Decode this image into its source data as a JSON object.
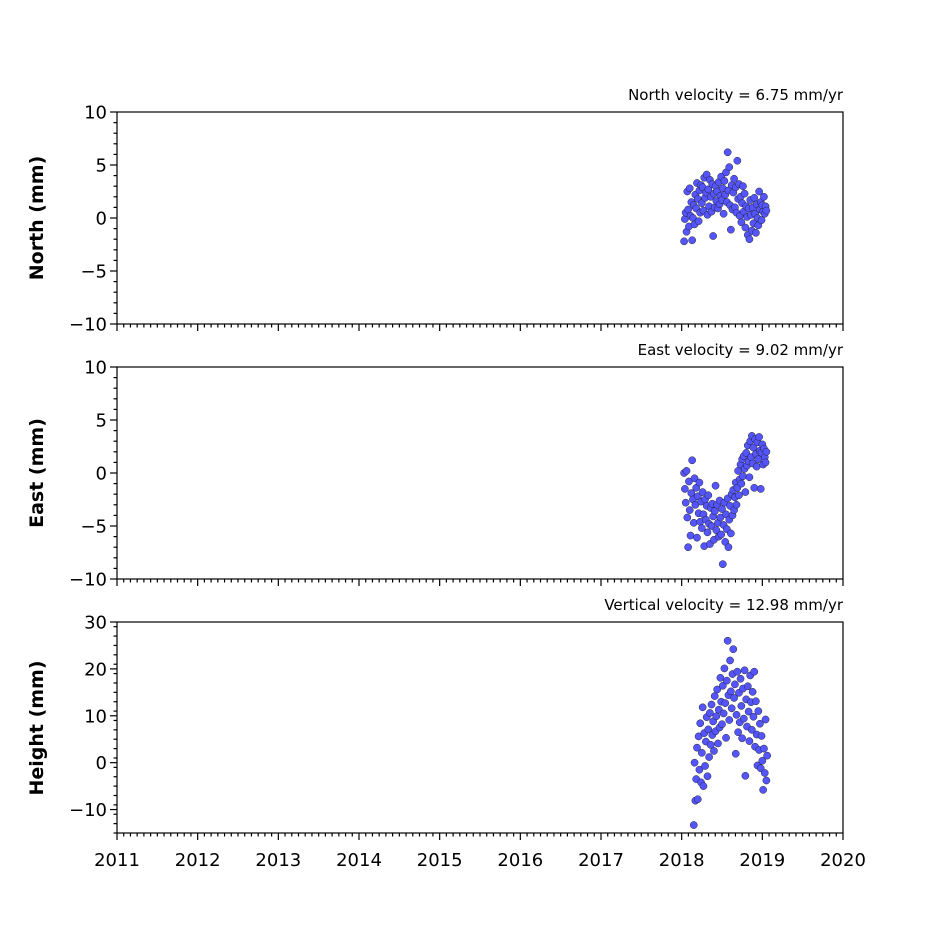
{
  "chart_data": [
    {
      "type": "scatter",
      "ylabel": "North (mm)",
      "annotation": "North velocity = 6.75 mm/yr",
      "xlim": [
        2011,
        2020
      ],
      "ylim": [
        -10,
        10
      ],
      "xticks": [
        2011,
        2012,
        2013,
        2014,
        2015,
        2016,
        2017,
        2018,
        2019,
        2020
      ],
      "yticks": [
        10,
        5,
        0,
        -5,
        -10
      ],
      "yticklabels": [
        "10",
        "5",
        "0",
        "−5",
        "−10"
      ],
      "color": "#5555ff",
      "points": [
        [
          2018.03,
          -2.2
        ],
        [
          2018.04,
          -0.1
        ],
        [
          2018.05,
          0.5
        ],
        [
          2018.06,
          -1.3
        ],
        [
          2018.07,
          2.5
        ],
        [
          2018.08,
          0.8
        ],
        [
          2018.09,
          -0.8
        ],
        [
          2018.1,
          2.8
        ],
        [
          2018.11,
          0.2
        ],
        [
          2018.12,
          1.5
        ],
        [
          2018.13,
          -2.1
        ],
        [
          2018.14,
          0.0
        ],
        [
          2018.15,
          1.2
        ],
        [
          2018.16,
          -0.6
        ],
        [
          2018.17,
          2.2
        ],
        [
          2018.18,
          0.9
        ],
        [
          2018.19,
          3.3
        ],
        [
          2018.2,
          1.8
        ],
        [
          2018.21,
          -0.3
        ],
        [
          2018.22,
          2.6
        ],
        [
          2018.23,
          0.5
        ],
        [
          2018.24,
          3.1
        ],
        [
          2018.25,
          1.4
        ],
        [
          2018.26,
          2.9
        ],
        [
          2018.27,
          0.7
        ],
        [
          2018.28,
          3.8
        ],
        [
          2018.29,
          1.9
        ],
        [
          2018.3,
          2.4
        ],
        [
          2018.31,
          4.1
        ],
        [
          2018.32,
          0.3
        ],
        [
          2018.33,
          2.7
        ],
        [
          2018.34,
          1.1
        ],
        [
          2018.35,
          3.6
        ],
        [
          2018.36,
          2.0
        ],
        [
          2018.37,
          0.6
        ],
        [
          2018.38,
          3.2
        ],
        [
          2018.39,
          -1.7
        ],
        [
          2018.4,
          2.3
        ],
        [
          2018.41,
          1.0
        ],
        [
          2018.42,
          3.0
        ],
        [
          2018.43,
          1.6
        ],
        [
          2018.44,
          2.5
        ],
        [
          2018.45,
          0.9
        ],
        [
          2018.46,
          3.4
        ],
        [
          2018.47,
          1.3
        ],
        [
          2018.48,
          2.1
        ],
        [
          2018.49,
          3.9
        ],
        [
          2018.5,
          1.7
        ],
        [
          2018.51,
          2.8
        ],
        [
          2018.52,
          0.4
        ],
        [
          2018.53,
          3.5
        ],
        [
          2018.54,
          2.2
        ],
        [
          2018.55,
          4.3
        ],
        [
          2018.56,
          1.5
        ],
        [
          2018.57,
          6.2
        ],
        [
          2018.58,
          2.6
        ],
        [
          2018.59,
          4.8
        ],
        [
          2018.6,
          1.2
        ],
        [
          2018.61,
          -1.1
        ],
        [
          2018.62,
          3.1
        ],
        [
          2018.63,
          0.8
        ],
        [
          2018.64,
          2.4
        ],
        [
          2018.65,
          3.7
        ],
        [
          2018.66,
          1.0
        ],
        [
          2018.67,
          2.9
        ],
        [
          2018.68,
          0.5
        ],
        [
          2018.69,
          5.4
        ],
        [
          2018.7,
          1.8
        ],
        [
          2018.71,
          3.2
        ],
        [
          2018.72,
          0.2
        ],
        [
          2018.73,
          2.0
        ],
        [
          2018.74,
          -0.4
        ],
        [
          2018.75,
          1.4
        ],
        [
          2018.76,
          3.0
        ],
        [
          2018.77,
          0.6
        ],
        [
          2018.78,
          2.3
        ],
        [
          2018.79,
          -0.9
        ],
        [
          2018.8,
          1.1
        ],
        [
          2018.81,
          0.1
        ],
        [
          2018.82,
          -1.6
        ],
        [
          2018.83,
          0.9
        ],
        [
          2018.84,
          -2.0
        ],
        [
          2018.85,
          1.7
        ],
        [
          2018.86,
          0.3
        ],
        [
          2018.87,
          -1.2
        ],
        [
          2018.88,
          1.0
        ],
        [
          2018.89,
          -0.5
        ],
        [
          2018.9,
          1.9
        ],
        [
          2018.91,
          0.4
        ],
        [
          2018.92,
          -1.4
        ],
        [
          2018.93,
          1.3
        ],
        [
          2018.94,
          0.0
        ],
        [
          2018.95,
          -0.7
        ],
        [
          2018.96,
          2.5
        ],
        [
          2018.97,
          0.8
        ],
        [
          2018.98,
          1.5
        ],
        [
          2018.99,
          -0.2
        ],
        [
          2019.0,
          1.2
        ],
        [
          2019.01,
          0.6
        ],
        [
          2019.02,
          2.0
        ],
        [
          2019.03,
          0.4
        ],
        [
          2019.04,
          1.1
        ],
        [
          2019.05,
          0.7
        ]
      ]
    },
    {
      "type": "scatter",
      "ylabel": "East (mm)",
      "annotation": "East velocity = 9.02 mm/yr",
      "xlim": [
        2011,
        2020
      ],
      "ylim": [
        -10,
        10
      ],
      "xticks": [
        2011,
        2012,
        2013,
        2014,
        2015,
        2016,
        2017,
        2018,
        2019,
        2020
      ],
      "yticks": [
        10,
        5,
        0,
        -5,
        -10
      ],
      "yticklabels": [
        "10",
        "5",
        "0",
        "−5",
        "−10"
      ],
      "color": "#5555ff",
      "points": [
        [
          2018.03,
          0.0
        ],
        [
          2018.04,
          -1.5
        ],
        [
          2018.05,
          -2.8
        ],
        [
          2018.06,
          0.2
        ],
        [
          2018.07,
          -4.2
        ],
        [
          2018.08,
          -7.0
        ],
        [
          2018.09,
          -0.8
        ],
        [
          2018.1,
          -3.5
        ],
        [
          2018.11,
          -5.9
        ],
        [
          2018.12,
          -1.9
        ],
        [
          2018.13,
          1.2
        ],
        [
          2018.14,
          -2.5
        ],
        [
          2018.15,
          -4.7
        ],
        [
          2018.16,
          -0.5
        ],
        [
          2018.17,
          -3.0
        ],
        [
          2018.18,
          -1.4
        ],
        [
          2018.19,
          -6.1
        ],
        [
          2018.2,
          -2.2
        ],
        [
          2018.21,
          -3.8
        ],
        [
          2018.22,
          -0.9
        ],
        [
          2018.23,
          -4.6
        ],
        [
          2018.24,
          -2.7
        ],
        [
          2018.25,
          -5.2
        ],
        [
          2018.26,
          -1.8
        ],
        [
          2018.27,
          -3.9
        ],
        [
          2018.28,
          -6.9
        ],
        [
          2018.29,
          -2.5
        ],
        [
          2018.3,
          -4.4
        ],
        [
          2018.31,
          -3.1
        ],
        [
          2018.32,
          -5.6
        ],
        [
          2018.33,
          -2.1
        ],
        [
          2018.34,
          -4.8
        ],
        [
          2018.35,
          -6.7
        ],
        [
          2018.36,
          -3.3
        ],
        [
          2018.37,
          -5.0
        ],
        [
          2018.38,
          -2.9
        ],
        [
          2018.39,
          -4.1
        ],
        [
          2018.4,
          -6.3
        ],
        [
          2018.41,
          -3.6
        ],
        [
          2018.42,
          -1.2
        ],
        [
          2018.43,
          -5.4
        ],
        [
          2018.44,
          -3.0
        ],
        [
          2018.45,
          -4.7
        ],
        [
          2018.46,
          -6.0
        ],
        [
          2018.47,
          -2.6
        ],
        [
          2018.48,
          -4.2
        ],
        [
          2018.49,
          -5.8
        ],
        [
          2018.5,
          -3.4
        ],
        [
          2018.51,
          -8.6
        ],
        [
          2018.52,
          -4.9
        ],
        [
          2018.53,
          -2.8
        ],
        [
          2018.54,
          -6.5
        ],
        [
          2018.55,
          -3.9
        ],
        [
          2018.56,
          -5.3
        ],
        [
          2018.57,
          -2.4
        ],
        [
          2018.58,
          -7.0
        ],
        [
          2018.59,
          -4.4
        ],
        [
          2018.6,
          -3.1
        ],
        [
          2018.61,
          -5.7
        ],
        [
          2018.62,
          -2.0
        ],
        [
          2018.63,
          -4.0
        ],
        [
          2018.64,
          -1.6
        ],
        [
          2018.65,
          -3.5
        ],
        [
          2018.66,
          -2.3
        ],
        [
          2018.67,
          -0.9
        ],
        [
          2018.68,
          -3.0
        ],
        [
          2018.69,
          -1.4
        ],
        [
          2018.7,
          0.2
        ],
        [
          2018.71,
          -2.1
        ],
        [
          2018.72,
          -0.6
        ],
        [
          2018.73,
          0.8
        ],
        [
          2018.74,
          -1.0
        ],
        [
          2018.75,
          1.3
        ],
        [
          2018.76,
          -0.3
        ],
        [
          2018.77,
          1.6
        ],
        [
          2018.78,
          0.4
        ],
        [
          2018.79,
          -1.8
        ],
        [
          2018.8,
          1.9
        ],
        [
          2018.81,
          0.7
        ],
        [
          2018.82,
          2.6
        ],
        [
          2018.83,
          1.1
        ],
        [
          2018.84,
          -0.4
        ],
        [
          2018.85,
          3.0
        ],
        [
          2018.86,
          1.5
        ],
        [
          2018.87,
          3.5
        ],
        [
          2018.88,
          0.9
        ],
        [
          2018.89,
          2.4
        ],
        [
          2018.9,
          -1.4
        ],
        [
          2018.91,
          3.2
        ],
        [
          2018.92,
          1.8
        ],
        [
          2018.93,
          0.6
        ],
        [
          2018.94,
          2.9
        ],
        [
          2018.95,
          1.3
        ],
        [
          2018.96,
          3.4
        ],
        [
          2018.97,
          2.1
        ],
        [
          2018.98,
          -1.5
        ],
        [
          2018.99,
          1.9
        ],
        [
          2019.0,
          2.7
        ],
        [
          2019.01,
          0.8
        ],
        [
          2019.02,
          2.3
        ],
        [
          2019.03,
          1.5
        ],
        [
          2019.04,
          1.0
        ],
        [
          2019.05,
          2.0
        ]
      ]
    },
    {
      "type": "scatter",
      "ylabel": "Height (mm)",
      "annotation": "Vertical velocity = 12.98 mm/yr",
      "xlim": [
        2011,
        2020
      ],
      "ylim": [
        -15,
        30
      ],
      "xticks": [
        2011,
        2012,
        2013,
        2014,
        2015,
        2016,
        2017,
        2018,
        2019,
        2020
      ],
      "yticks": [
        30,
        20,
        10,
        0,
        -10
      ],
      "yticklabels": [
        "30",
        "20",
        "10",
        "0",
        "−10"
      ],
      "color": "#5555ff",
      "points": [
        [
          2018.15,
          -13.3
        ],
        [
          2018.16,
          0.0
        ],
        [
          2018.17,
          -8.1
        ],
        [
          2018.18,
          -3.5
        ],
        [
          2018.19,
          3.2
        ],
        [
          2018.2,
          -7.8
        ],
        [
          2018.21,
          5.6
        ],
        [
          2018.22,
          -1.5
        ],
        [
          2018.23,
          8.4
        ],
        [
          2018.24,
          -4.2
        ],
        [
          2018.25,
          2.1
        ],
        [
          2018.26,
          11.8
        ],
        [
          2018.27,
          -5.0
        ],
        [
          2018.28,
          6.3
        ],
        [
          2018.29,
          -0.7
        ],
        [
          2018.3,
          4.5
        ],
        [
          2018.31,
          9.7
        ],
        [
          2018.32,
          -2.9
        ],
        [
          2018.33,
          7.1
        ],
        [
          2018.34,
          1.2
        ],
        [
          2018.35,
          10.6
        ],
        [
          2018.36,
          3.8
        ],
        [
          2018.37,
          12.4
        ],
        [
          2018.38,
          5.9
        ],
        [
          2018.39,
          8.8
        ],
        [
          2018.4,
          2.5
        ],
        [
          2018.41,
          14.2
        ],
        [
          2018.42,
          6.7
        ],
        [
          2018.43,
          9.9
        ],
        [
          2018.44,
          15.6
        ],
        [
          2018.45,
          4.1
        ],
        [
          2018.46,
          11.3
        ],
        [
          2018.47,
          7.5
        ],
        [
          2018.48,
          18.1
        ],
        [
          2018.49,
          13.0
        ],
        [
          2018.5,
          8.2
        ],
        [
          2018.51,
          16.4
        ],
        [
          2018.52,
          10.5
        ],
        [
          2018.53,
          20.1
        ],
        [
          2018.54,
          12.7
        ],
        [
          2018.55,
          5.3
        ],
        [
          2018.56,
          17.5
        ],
        [
          2018.57,
          26.0
        ],
        [
          2018.58,
          14.4
        ],
        [
          2018.59,
          9.1
        ],
        [
          2018.6,
          21.8
        ],
        [
          2018.61,
          15.2
        ],
        [
          2018.62,
          11.6
        ],
        [
          2018.63,
          18.9
        ],
        [
          2018.64,
          24.2
        ],
        [
          2018.65,
          13.8
        ],
        [
          2018.66,
          16.7
        ],
        [
          2018.67,
          1.9
        ],
        [
          2018.68,
          10.2
        ],
        [
          2018.69,
          19.4
        ],
        [
          2018.7,
          6.5
        ],
        [
          2018.71,
          14.9
        ],
        [
          2018.72,
          8.6
        ],
        [
          2018.73,
          17.9
        ],
        [
          2018.74,
          12.1
        ],
        [
          2018.75,
          5.2
        ],
        [
          2018.76,
          15.8
        ],
        [
          2018.77,
          9.4
        ],
        [
          2018.78,
          19.7
        ],
        [
          2018.79,
          -2.8
        ],
        [
          2018.8,
          13.5
        ],
        [
          2018.81,
          7.7
        ],
        [
          2018.82,
          16.3
        ],
        [
          2018.83,
          10.9
        ],
        [
          2018.84,
          4.6
        ],
        [
          2018.85,
          18.6
        ],
        [
          2018.86,
          12.9
        ],
        [
          2018.87,
          7.0
        ],
        [
          2018.88,
          15.1
        ],
        [
          2018.89,
          9.8
        ],
        [
          2018.9,
          19.4
        ],
        [
          2018.91,
          3.4
        ],
        [
          2018.92,
          13.1
        ],
        [
          2018.93,
          6.0
        ],
        [
          2018.94,
          -0.6
        ],
        [
          2018.95,
          11.0
        ],
        [
          2018.96,
          2.7
        ],
        [
          2018.97,
          8.3
        ],
        [
          2018.98,
          -1.2
        ],
        [
          2018.99,
          5.7
        ],
        [
          2019.0,
          0.4
        ],
        [
          2019.01,
          -5.8
        ],
        [
          2019.02,
          3.0
        ],
        [
          2019.03,
          -2.2
        ],
        [
          2019.04,
          9.2
        ],
        [
          2019.05,
          -3.8
        ],
        [
          2019.06,
          1.5
        ]
      ]
    }
  ]
}
